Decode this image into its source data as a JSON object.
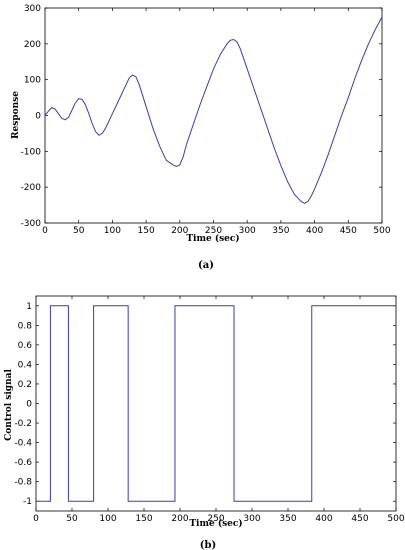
{
  "chart_data": [
    {
      "type": "line",
      "panel_label": "(a)",
      "xlabel": "Time (sec)",
      "ylabel": "Response",
      "xlim": [
        0,
        500
      ],
      "ylim": [
        -300,
        300
      ],
      "xticks": [
        0,
        50,
        100,
        150,
        200,
        250,
        300,
        350,
        400,
        450,
        500
      ],
      "yticks": [
        300,
        200,
        100,
        0,
        -100,
        -200,
        -300
      ],
      "grid": false,
      "line_color": "#3b3bb0",
      "series": [
        {
          "x": [
            0,
            5,
            10,
            15,
            20,
            25,
            30,
            35,
            40,
            45,
            50,
            55,
            60,
            65,
            70,
            75,
            80,
            85,
            90,
            95,
            100,
            110,
            120,
            125,
            130,
            135,
            140,
            145,
            150,
            160,
            170,
            180,
            190,
            195,
            200,
            205,
            210,
            220,
            230,
            240,
            250,
            260,
            270,
            275,
            280,
            285,
            290,
            300,
            310,
            320,
            330,
            340,
            350,
            360,
            370,
            380,
            385,
            390,
            395,
            400,
            410,
            420,
            430,
            440,
            450,
            460,
            470,
            480,
            490,
            500
          ],
          "y": [
            0,
            12,
            22,
            18,
            5,
            -8,
            -12,
            -5,
            15,
            35,
            47,
            45,
            30,
            5,
            -22,
            -45,
            -55,
            -50,
            -35,
            -15,
            5,
            45,
            85,
            105,
            113,
            108,
            85,
            55,
            25,
            -35,
            -85,
            -125,
            -138,
            -142,
            -138,
            -115,
            -80,
            -25,
            30,
            80,
            130,
            170,
            200,
            210,
            212,
            205,
            185,
            130,
            75,
            20,
            -35,
            -90,
            -140,
            -185,
            -220,
            -240,
            -245,
            -240,
            -225,
            -205,
            -160,
            -110,
            -55,
            0,
            50,
            105,
            155,
            200,
            240,
            275
          ]
        }
      ]
    },
    {
      "type": "line",
      "panel_label": "(b)",
      "xlabel": "Time (sec)",
      "ylabel": "Control signal",
      "xlim": [
        0,
        500
      ],
      "ylim": [
        -1.1,
        1.1
      ],
      "xticks": [
        0,
        50,
        100,
        150,
        200,
        250,
        300,
        350,
        400,
        450,
        500
      ],
      "yticks": [
        "1",
        "0.8",
        "0.6",
        "0.4",
        "0.2",
        "0",
        "-0.2",
        "-0.4",
        "-0.6",
        "-0.8",
        "-1"
      ],
      "grid": false,
      "line_color": "#3b3bb0",
      "series": [
        {
          "x": [
            0,
            20,
            20,
            45,
            45,
            80,
            80,
            128,
            128,
            193,
            193,
            275,
            275,
            383,
            383,
            500
          ],
          "y": [
            -1,
            -1,
            1,
            1,
            -1,
            -1,
            1,
            1,
            -1,
            -1,
            1,
            1,
            -1,
            -1,
            1,
            1
          ]
        }
      ]
    }
  ]
}
